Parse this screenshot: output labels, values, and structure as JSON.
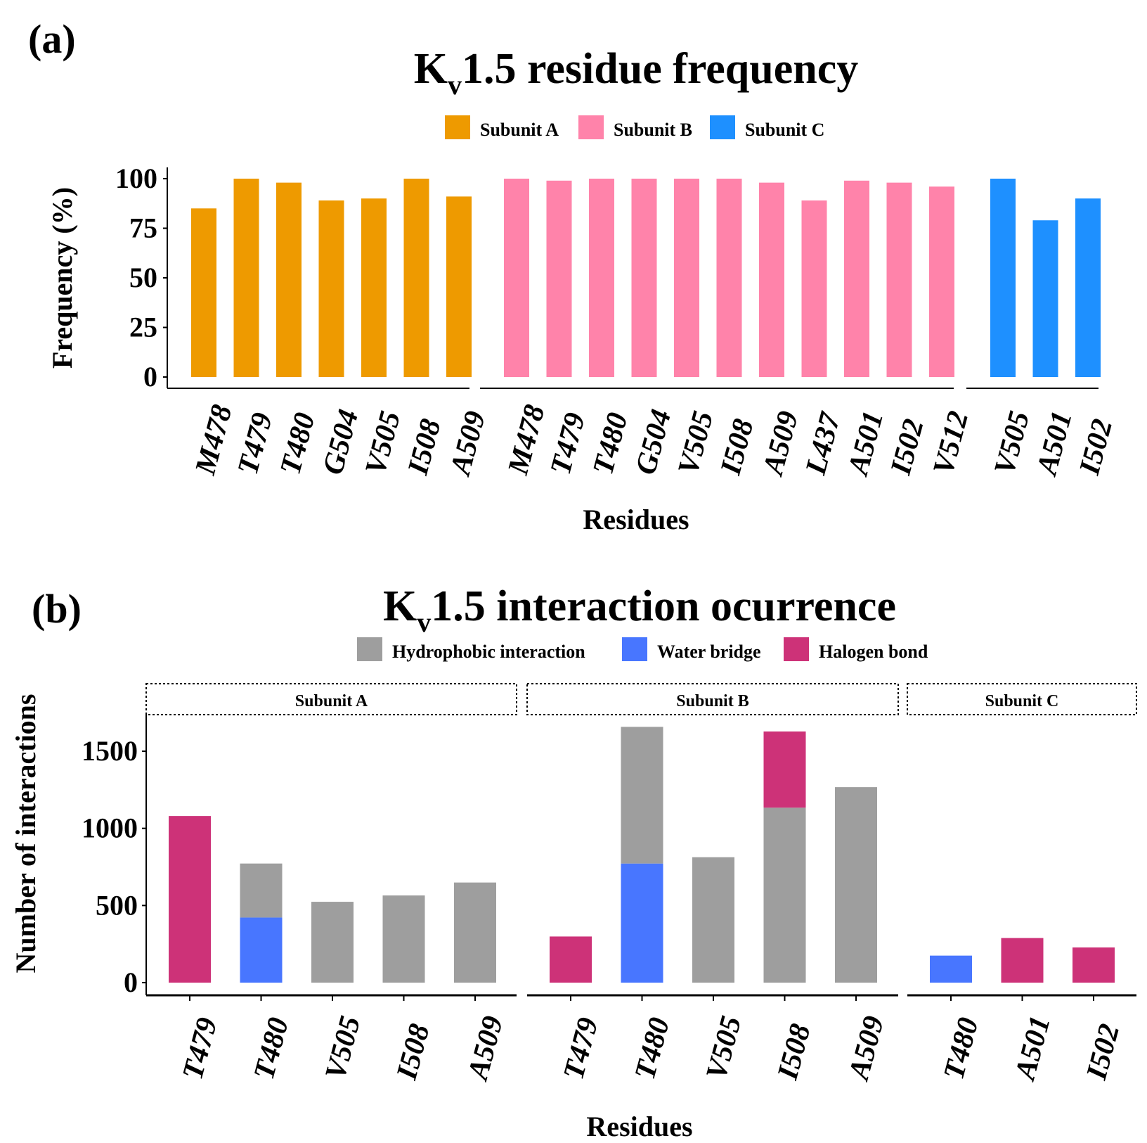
{
  "chart_data": [
    {
      "type": "bar",
      "panel_label": "(a)",
      "title_main": "K",
      "title_sub": "v",
      "title_rest": "1.5 residue frequency",
      "xlabel": "Residues",
      "ylabel": "Frequency (%)",
      "ylim": [
        0,
        100
      ],
      "yticks": [
        0,
        25,
        50,
        75,
        100
      ],
      "legend": [
        {
          "name": "Subunit A",
          "color": "#EE9A00"
        },
        {
          "name": "Subunit B",
          "color": "#FF83AA"
        },
        {
          "name": "Subunit C",
          "color": "#1E90FF"
        }
      ],
      "legend_position": "top",
      "facets": [
        {
          "name": "Subunit A",
          "color": "#EE9A00",
          "categories": [
            "M478",
            "T479",
            "T480",
            "G504",
            "V505",
            "I508",
            "A509"
          ],
          "values": [
            85,
            100,
            98,
            89,
            90,
            100,
            91
          ]
        },
        {
          "name": "Subunit B",
          "color": "#FF83AA",
          "categories": [
            "M478",
            "T479",
            "T480",
            "G504",
            "V505",
            "I508",
            "A509",
            "L437",
            "A501",
            "I502",
            "V512"
          ],
          "values": [
            100,
            99,
            100,
            100,
            100,
            100,
            98,
            89,
            99,
            98,
            96
          ]
        },
        {
          "name": "Subunit C",
          "color": "#1E90FF",
          "categories": [
            "V505",
            "A501",
            "I502"
          ],
          "values": [
            100,
            79,
            90
          ]
        }
      ]
    },
    {
      "type": "bar",
      "stacked": true,
      "panel_label": "(b)",
      "title_main": "K",
      "title_sub": "v",
      "title_rest": "1.5 interaction ocurrence",
      "xlabel": "Residues",
      "ylabel": "Number of interactions",
      "ylim": [
        0,
        1700
      ],
      "yticks": [
        0,
        500,
        1000,
        1500
      ],
      "legend": [
        {
          "name": "Hydrophobic interaction",
          "color": "#9E9E9E"
        },
        {
          "name": "Water bridge",
          "color": "#4876FF"
        },
        {
          "name": "Halogen bond",
          "color": "#CD3278"
        }
      ],
      "legend_position": "top",
      "facets": [
        {
          "name": "Subunit A",
          "categories": [
            "T479",
            "T480",
            "V505",
            "I508",
            "A509"
          ],
          "series": {
            "Water bridge": [
              0,
              422,
              0,
              0,
              0
            ],
            "Hydrophobic interaction": [
              0,
              350,
              524,
              565,
              649
            ],
            "Halogen bond": [
              1080,
              0,
              0,
              0,
              0
            ]
          }
        },
        {
          "name": "Subunit B",
          "categories": [
            "T479",
            "T480",
            "V505",
            "I508",
            "A509"
          ],
          "series": {
            "Water bridge": [
              0,
              772,
              0,
              0,
              0
            ],
            "Hydrophobic interaction": [
              0,
              886,
              813,
              1134,
              1267
            ],
            "Halogen bond": [
              299,
              0,
              0,
              494,
              0
            ]
          }
        },
        {
          "name": "Subunit C",
          "categories": [
            "T480",
            "A501",
            "I502"
          ],
          "series": {
            "Water bridge": [
              175,
              0,
              0
            ],
            "Hydrophobic interaction": [
              0,
              0,
              0
            ],
            "Halogen bond": [
              0,
              289,
              228
            ]
          }
        }
      ]
    }
  ]
}
